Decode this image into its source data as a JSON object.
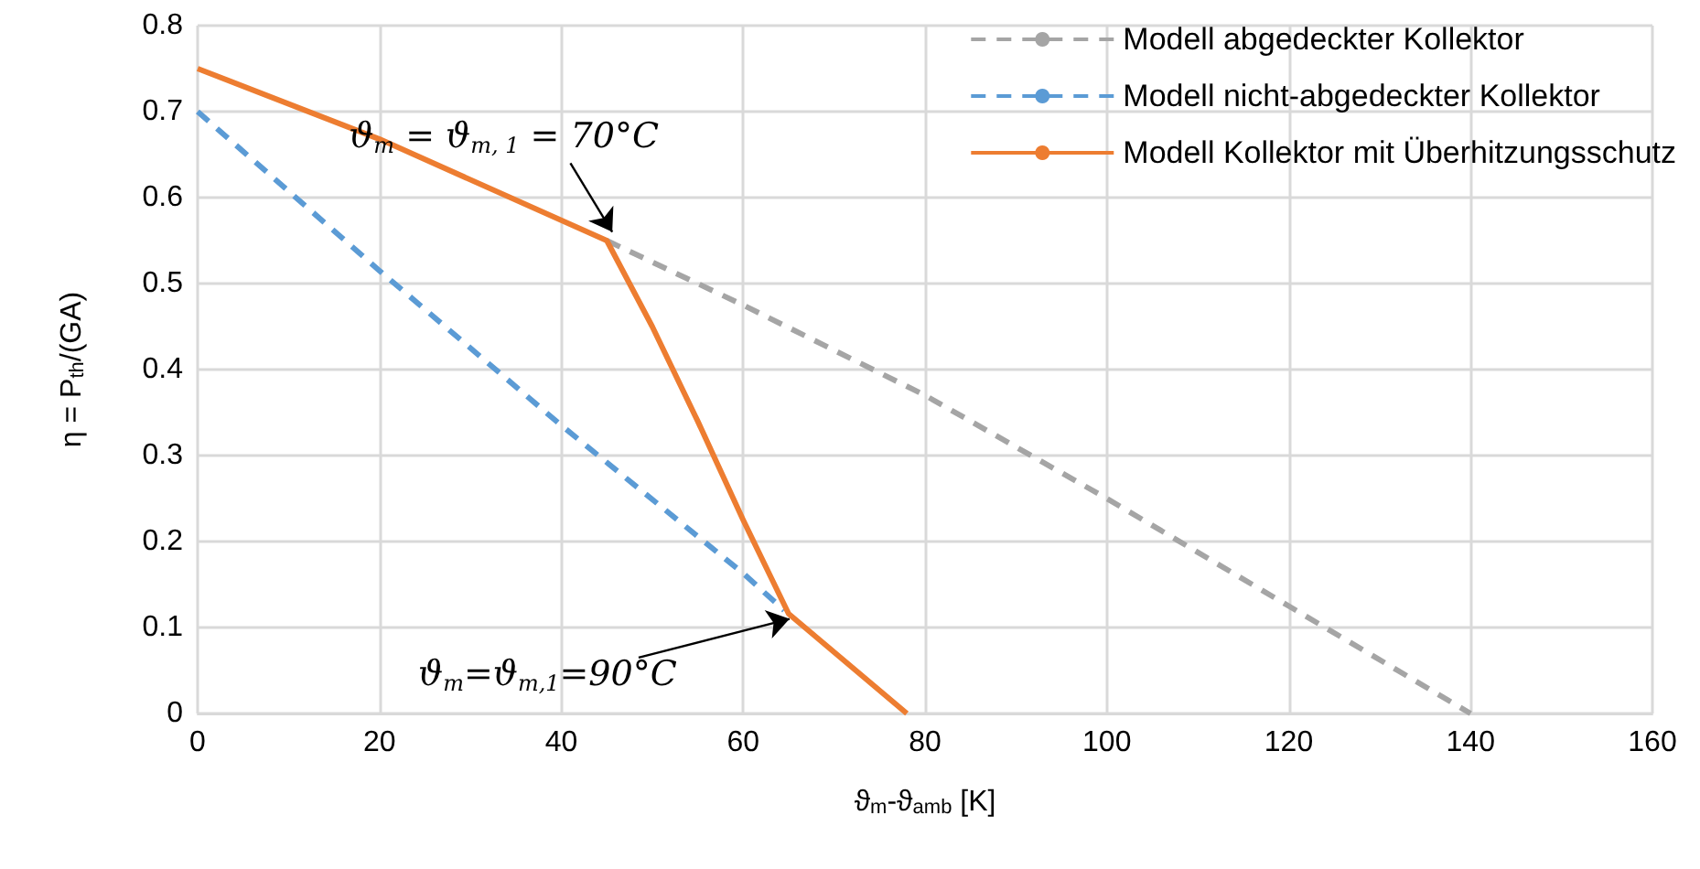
{
  "chart_data": {
    "type": "line",
    "xlabel": "ϑ$_{m}$-ϑ$_{amb}$ [K]",
    "ylabel": "η = P$_{th}$/(GA)",
    "xlim": [
      0,
      160
    ],
    "xticks": [
      0,
      20,
      40,
      60,
      80,
      100,
      120,
      140,
      160
    ],
    "ylim": [
      0,
      0.8
    ],
    "yticks": [
      0,
      0.1,
      0.2,
      0.3,
      0.4,
      0.5,
      0.6,
      0.7,
      0.8
    ],
    "grid": true,
    "legend": "top right",
    "marker": "none",
    "series": [
      {
        "name": "Modell abgedeckter Kollektor",
        "color": "#a5a5a5",
        "line_style": "dashed",
        "x": [
          45,
          60,
          80,
          100,
          120,
          140
        ],
        "values": [
          0.55,
          0.475,
          0.37,
          0.25,
          0.125,
          0
        ]
      },
      {
        "name": "Modell nicht-abgedeckter Kollektor",
        "color": "#5b9bd5",
        "line_style": "dashed",
        "x": [
          0,
          20,
          40,
          60,
          64.5
        ],
        "values": [
          0.7,
          0.515,
          0.335,
          0.163,
          0.12
        ]
      },
      {
        "name": "Modell Kollektor mit Überhitzungsschutz",
        "color": "#ed7d31",
        "line_style": "solid",
        "x": [
          0,
          20,
          45,
          50,
          55,
          60,
          65,
          78
        ],
        "values": [
          0.75,
          0.668,
          0.55,
          0.45,
          0.34,
          0.225,
          0.116,
          0
        ]
      }
    ],
    "annotations": [
      {
        "text": "ϑ$_{m}$ = ϑ$_{m, 1}$ = 70°C",
        "x": 45,
        "y": 0.55
      },
      {
        "text": "ϑ$_{m}$=ϑ$_{m,1}$=90°C",
        "x": 64.5,
        "y": 0.12
      }
    ]
  }
}
